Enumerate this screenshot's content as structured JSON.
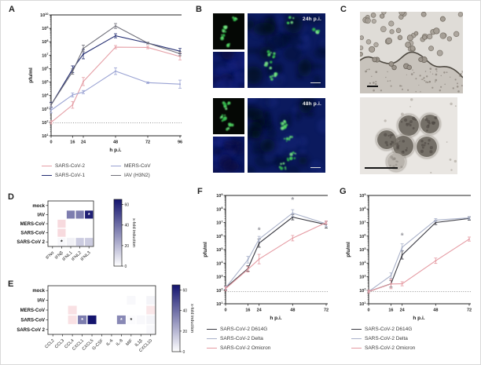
{
  "figure": {
    "panels": {
      "A": {
        "letter": "A"
      },
      "B": {
        "letter": "B",
        "timepoints": [
          "24h p.i.",
          "48h p.i."
        ]
      },
      "C": {
        "letter": "C"
      },
      "D": {
        "letter": "D"
      },
      "E": {
        "letter": "E"
      },
      "F": {
        "letter": "F"
      },
      "G": {
        "letter": "G"
      }
    }
  },
  "chart_data": [
    {
      "id": "A",
      "type": "line",
      "xlabel": "h p.i.",
      "ylabel": "pfu/ml",
      "x_ticks": [
        0,
        16,
        24,
        48,
        72,
        96
      ],
      "x_range": [
        0,
        96
      ],
      "y_log_exp_range": [
        1,
        10
      ],
      "detection_limit": 90,
      "legend_columns": 2,
      "legend_order": [
        0,
        2,
        1,
        3
      ],
      "series": [
        {
          "name": "SARS-CoV-2",
          "color": "#e59fa6",
          "values": [
            100,
            2000,
            110000,
            40000000,
            38000000,
            8000000
          ],
          "err": [
            0.12,
            0.25,
            0.3,
            0.12,
            0.1,
            0.25
          ]
        },
        {
          "name": "SARS-CoV-1",
          "color": "#232d71",
          "values": [
            2000,
            900000,
            12000000,
            280000000,
            80000000,
            20000000
          ],
          "err": [
            0.2,
            0.25,
            0.35,
            0.15,
            0.06,
            0.2
          ]
        },
        {
          "name": "MERS-CoV",
          "color": "#99a2d3",
          "values": [
            800,
            11000,
            18000,
            650000,
            90000,
            70000
          ],
          "err": [
            0.2,
            0.15,
            0.12,
            0.25,
            0.06,
            0.3
          ]
        },
        {
          "name": "IAV (H3N2)",
          "color": "#70707a",
          "values": [
            2000,
            600000,
            32000000,
            1500000000,
            80000000,
            13000000
          ],
          "err": [
            0.15,
            0.2,
            0.25,
            0.18,
            0.06,
            0.15
          ]
        }
      ],
      "annotations": []
    },
    {
      "id": "F",
      "type": "line",
      "xlabel": "h p.i.",
      "ylabel": "pfu/ml",
      "x_ticks": [
        0,
        16,
        24,
        48,
        72
      ],
      "x_range": [
        0,
        72
      ],
      "y_log_exp_range": [
        1,
        9
      ],
      "detection_limit": 80,
      "legend_columns": 1,
      "legend_order": [
        0,
        1,
        2
      ],
      "series": [
        {
          "name": "SARS-CoV-2 D614G",
          "color": "#3c3c44",
          "values": [
            150,
            4000,
            300000,
            25000000,
            7000000
          ],
          "err": [
            0.15,
            0.2,
            0.3,
            0.2,
            0.25
          ]
        },
        {
          "name": "SARS-CoV-2 Delta",
          "color": "#aab2ca",
          "values": [
            150,
            18000,
            600000,
            50000000,
            8000000
          ],
          "err": [
            0.12,
            0.25,
            0.2,
            0.25,
            0.2
          ]
        },
        {
          "name": "SARS-CoV-2 Omicron",
          "color": "#e59aa2",
          "values": [
            130,
            3500,
            20000,
            700000,
            10000000
          ],
          "err": [
            0.15,
            0.2,
            0.35,
            0.2,
            0.12
          ]
        }
      ],
      "annotations": [
        {
          "x": 24,
          "y": 1800000,
          "text": "*"
        },
        {
          "x": 48,
          "y": 300000000,
          "text": "*"
        }
      ]
    },
    {
      "id": "G",
      "type": "line",
      "xlabel": "h p.i.",
      "ylabel": "pfu/ml",
      "x_ticks": [
        0,
        16,
        24,
        48,
        72
      ],
      "x_range": [
        0,
        72
      ],
      "y_log_exp_range": [
        1,
        9
      ],
      "detection_limit": 80,
      "legend_columns": 1,
      "legend_order": [
        0,
        1,
        2
      ],
      "series": [
        {
          "name": "SARS-CoV-2 D614G",
          "color": "#3c3c44",
          "values": [
            80,
            300,
            40000,
            10000000,
            20000000
          ],
          "err": [
            0.1,
            0.25,
            0.3,
            0.15,
            0.12
          ]
        },
        {
          "name": "SARS-CoV-2 Delta",
          "color": "#aab2ca",
          "values": [
            80,
            1200,
            150000,
            15000000,
            22000000
          ],
          "err": [
            0.1,
            0.2,
            0.25,
            0.12,
            0.1
          ]
        },
        {
          "name": "SARS-CoV-2 Omicron",
          "color": "#e59aa2",
          "values": [
            80,
            290,
            300,
            15000,
            600000
          ],
          "err": [
            0.1,
            0.35,
            0.15,
            0.2,
            0.15
          ]
        }
      ],
      "annotations": [
        {
          "x": 24,
          "y": 700000,
          "text": "*"
        }
      ]
    },
    {
      "id": "D",
      "type": "heatmap",
      "rows": [
        "mock",
        "IAV",
        "MERS-CoV",
        "SARS-CoV",
        "SARS-CoV 2"
      ],
      "cols": [
        "IFNα",
        "IFNβ",
        "IFNL1",
        "IFNL2",
        "IFNL3"
      ],
      "values": [
        [
          0,
          0,
          0,
          0,
          0
        ],
        [
          0,
          0,
          36,
          36,
          62
        ],
        [
          0,
          -6,
          0,
          0,
          0
        ],
        [
          0,
          -6,
          0,
          0,
          0
        ],
        [
          0,
          2,
          4,
          14,
          14
        ]
      ],
      "markers": [
        {
          "row": 1,
          "col": 4,
          "symbol": "*",
          "color": "#ffffff"
        },
        {
          "row": 4,
          "col": 1,
          "symbol": "*",
          "color": "#1a1a1a"
        }
      ],
      "colorbar": {
        "label": "x-fold induction",
        "ticks": [
          0,
          20,
          40,
          60
        ],
        "vmax": 65,
        "positive_color": "#14146e",
        "negative_color": "#f2c2c8"
      }
    },
    {
      "id": "E",
      "type": "heatmap",
      "rows": [
        "mock",
        "IAV",
        "MERS-CoV",
        "SARS-CoV",
        "SARS-CoV 2"
      ],
      "cols": [
        "CCL2",
        "CCL3",
        "CCL4",
        "CXCL1",
        "CXCL5",
        "G-CSF",
        "IL-6",
        "IL-8",
        "MIF",
        "IL1β",
        "CXCL10"
      ],
      "values": [
        [
          0,
          0,
          0,
          0,
          0,
          0,
          0,
          0,
          0,
          0,
          0
        ],
        [
          0,
          0,
          0,
          0,
          0,
          0,
          0,
          0,
          2,
          0,
          3
        ],
        [
          0,
          0,
          -5,
          0,
          0,
          0,
          0,
          0,
          0,
          0,
          -4
        ],
        [
          0,
          0,
          -5,
          36,
          65,
          0,
          0,
          33,
          1,
          2,
          3
        ],
        [
          0,
          0,
          0,
          0,
          0,
          0,
          0,
          0,
          0,
          0,
          2
        ]
      ],
      "markers": [
        {
          "row": 3,
          "col": 3,
          "symbol": "*",
          "color": "#ffffff"
        },
        {
          "row": 3,
          "col": 7,
          "symbol": "*",
          "color": "#ffffff"
        },
        {
          "row": 3,
          "col": 8,
          "symbol": "*",
          "color": "#1a1a1a"
        }
      ],
      "colorbar": {
        "label": "x-fold induction",
        "ticks": [
          0,
          20,
          40,
          60
        ],
        "vmax": 65,
        "positive_color": "#14146e",
        "negative_color": "#f2c2c8"
      }
    }
  ]
}
